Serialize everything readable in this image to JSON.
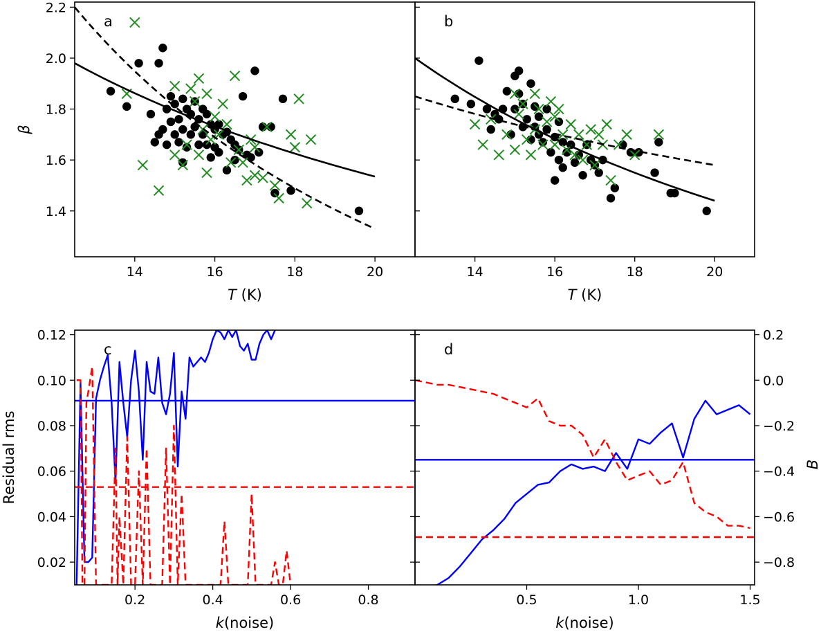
{
  "chart_data": [
    {
      "panel": "a",
      "type": "scatter",
      "xlabel_italic": "T",
      "xlabel_unit": " (K)",
      "ylabel": "β",
      "xlim": [
        12.5,
        21.0
      ],
      "ylim": [
        1.22,
        2.22
      ],
      "xticks": [
        "14",
        "16",
        "18",
        "20"
      ],
      "yticks": [
        "1.4",
        "1.6",
        "1.8",
        "2.0",
        "2.2"
      ],
      "colors": {
        "dots": "#000000",
        "crosses": "#228B22",
        "fit": "#000000"
      },
      "series": [
        {
          "name": "black-dots",
          "marker": "dot",
          "x": [
            13.4,
            13.8,
            14.1,
            14.4,
            14.5,
            14.6,
            14.6,
            14.7,
            14.7,
            14.8,
            14.8,
            14.9,
            14.9,
            15.0,
            15.0,
            15.1,
            15.1,
            15.2,
            15.2,
            15.2,
            15.3,
            15.3,
            15.4,
            15.4,
            15.5,
            15.5,
            15.6,
            15.6,
            15.7,
            15.7,
            15.8,
            15.8,
            15.9,
            15.9,
            16.0,
            16.0,
            16.1,
            16.1,
            16.2,
            16.3,
            16.3,
            16.4,
            16.5,
            16.5,
            16.6,
            16.7,
            16.8,
            16.9,
            17.0,
            17.1,
            17.2,
            17.4,
            17.5,
            17.7,
            17.9,
            19.6
          ],
          "y": [
            1.87,
            1.81,
            1.98,
            1.78,
            1.67,
            1.7,
            1.98,
            2.04,
            1.72,
            1.8,
            1.66,
            1.85,
            1.75,
            1.82,
            1.7,
            1.76,
            1.67,
            1.84,
            1.72,
            1.59,
            1.8,
            1.65,
            1.78,
            1.7,
            1.83,
            1.73,
            1.76,
            1.66,
            1.8,
            1.7,
            1.78,
            1.66,
            1.74,
            1.61,
            1.72,
            1.65,
            1.74,
            1.63,
            1.7,
            1.71,
            1.56,
            1.68,
            1.66,
            1.6,
            1.64,
            1.85,
            1.62,
            1.61,
            1.95,
            1.63,
            1.73,
            1.73,
            1.47,
            1.84,
            1.48,
            1.4
          ]
        },
        {
          "name": "green-crosses",
          "marker": "cross",
          "x": [
            13.8,
            14.0,
            14.2,
            14.6,
            15.0,
            15.0,
            15.2,
            15.3,
            15.4,
            15.5,
            15.6,
            15.6,
            15.7,
            15.8,
            15.8,
            15.9,
            16.0,
            16.1,
            16.2,
            16.3,
            16.4,
            16.5,
            16.6,
            16.7,
            16.8,
            16.9,
            17.0,
            17.0,
            17.2,
            17.3,
            17.5,
            17.6,
            17.9,
            18.0,
            18.1,
            18.3,
            18.4
          ],
          "y": [
            1.86,
            2.14,
            1.58,
            1.48,
            1.62,
            1.89,
            1.58,
            1.66,
            1.88,
            1.83,
            1.62,
            1.92,
            1.72,
            1.55,
            1.86,
            1.68,
            1.77,
            1.7,
            1.82,
            1.74,
            1.59,
            1.93,
            1.64,
            1.59,
            1.52,
            1.68,
            1.54,
            1.65,
            1.53,
            1.73,
            1.5,
            1.45,
            1.7,
            1.65,
            1.84,
            1.43,
            1.68
          ]
        },
        {
          "name": "solid-fit",
          "marker": "line-solid",
          "x": [
            12.5,
            20.0
          ],
          "y": [
            1.98,
            1.535
          ]
        },
        {
          "name": "dashed-fit",
          "marker": "line-dashed",
          "x": [
            12.5,
            20.0
          ],
          "y": [
            2.2,
            1.33
          ]
        }
      ]
    },
    {
      "panel": "b",
      "type": "scatter",
      "xlabel_italic": "T",
      "xlabel_unit": " (K)",
      "xlim": [
        12.5,
        21.0
      ],
      "ylim": [
        1.22,
        2.22
      ],
      "xticks": [
        "14",
        "16",
        "18",
        "20"
      ],
      "colors": {
        "dots": "#000000",
        "crosses": "#228B22",
        "fit": "#000000"
      },
      "series": [
        {
          "name": "black-dots",
          "marker": "dot",
          "x": [
            13.5,
            13.9,
            14.1,
            14.3,
            14.4,
            14.5,
            14.6,
            14.7,
            14.8,
            14.9,
            15.0,
            15.0,
            15.1,
            15.1,
            15.2,
            15.2,
            15.3,
            15.4,
            15.4,
            15.5,
            15.5,
            15.6,
            15.6,
            15.7,
            15.8,
            15.8,
            15.9,
            16.0,
            16.0,
            16.1,
            16.1,
            16.2,
            16.2,
            16.3,
            16.4,
            16.5,
            16.6,
            16.7,
            16.8,
            16.9,
            17.0,
            17.1,
            17.2,
            17.4,
            17.5,
            17.7,
            17.9,
            18.1,
            18.5,
            18.6,
            18.9,
            19.0,
            19.8
          ],
          "y": [
            1.84,
            1.82,
            1.99,
            1.8,
            1.72,
            1.78,
            1.76,
            1.8,
            1.87,
            1.7,
            1.93,
            1.8,
            1.95,
            1.86,
            1.82,
            1.73,
            1.76,
            1.9,
            1.68,
            1.81,
            1.73,
            1.7,
            1.77,
            1.67,
            1.8,
            1.72,
            1.63,
            1.69,
            1.52,
            1.75,
            1.6,
            1.67,
            1.57,
            1.63,
            1.66,
            1.59,
            1.62,
            1.54,
            1.66,
            1.6,
            1.58,
            1.55,
            1.6,
            1.45,
            1.49,
            1.66,
            1.63,
            1.63,
            1.55,
            1.67,
            1.47,
            1.47,
            1.4
          ]
        },
        {
          "name": "green-crosses",
          "marker": "cross",
          "x": [
            14.0,
            14.2,
            14.4,
            14.6,
            14.8,
            15.0,
            15.0,
            15.1,
            15.2,
            15.3,
            15.4,
            15.5,
            15.5,
            15.6,
            15.7,
            15.8,
            15.9,
            16.0,
            16.0,
            16.1,
            16.2,
            16.3,
            16.4,
            16.5,
            16.6,
            16.7,
            16.8,
            16.9,
            17.0,
            17.1,
            17.2,
            17.3,
            17.4,
            17.6,
            17.8,
            18.0,
            18.6
          ],
          "y": [
            1.74,
            1.66,
            1.76,
            1.62,
            1.7,
            1.86,
            1.64,
            1.78,
            1.82,
            1.68,
            1.62,
            1.86,
            1.72,
            1.8,
            1.66,
            1.75,
            1.83,
            1.77,
            1.66,
            1.8,
            1.7,
            1.64,
            1.74,
            1.62,
            1.7,
            1.6,
            1.66,
            1.72,
            1.58,
            1.7,
            1.66,
            1.74,
            1.52,
            1.66,
            1.7,
            1.62,
            1.7
          ]
        },
        {
          "name": "solid-fit",
          "marker": "line-solid",
          "x": [
            12.5,
            20.0
          ],
          "y": [
            2.0,
            1.44
          ]
        },
        {
          "name": "dashed-fit",
          "marker": "line-dashed",
          "x": [
            12.5,
            20.0
          ],
          "y": [
            1.85,
            1.58
          ]
        }
      ]
    },
    {
      "panel": "c",
      "type": "line",
      "xlabel_italic": "k",
      "xlabel_unit": "(noise)",
      "ylabel": "Residual rms",
      "xlim": [
        0.045,
        0.92
      ],
      "ylim": [
        0.01,
        0.122
      ],
      "y2lim": [
        -0.9,
        0.22
      ],
      "xticks": [
        "0.2",
        "0.4",
        "0.6",
        "0.8"
      ],
      "yticks": [
        "0.02",
        "0.04",
        "0.06",
        "0.08",
        "0.10",
        "0.12"
      ],
      "colors": {
        "rms": "#0000FF",
        "B": "#FF0000"
      },
      "series": [
        {
          "name": "rms",
          "axis": "left",
          "style": "solid",
          "x": [
            0.05,
            0.06,
            0.07,
            0.08,
            0.09,
            0.1,
            0.11,
            0.12,
            0.13,
            0.14,
            0.15,
            0.16,
            0.17,
            0.18,
            0.19,
            0.2,
            0.21,
            0.22,
            0.23,
            0.24,
            0.25,
            0.26,
            0.27,
            0.28,
            0.29,
            0.3,
            0.31,
            0.32,
            0.33,
            0.34,
            0.35,
            0.36,
            0.37,
            0.38,
            0.39,
            0.4,
            0.41,
            0.42,
            0.43,
            0.44,
            0.45,
            0.46,
            0.47,
            0.48,
            0.49,
            0.5,
            0.51,
            0.52,
            0.53,
            0.54,
            0.55,
            0.56
          ],
          "y": [
            0.01,
            0.099,
            0.02,
            0.02,
            0.022,
            0.092,
            0.1,
            0.106,
            0.111,
            0.09,
            0.055,
            0.108,
            0.09,
            0.075,
            0.1,
            0.113,
            0.095,
            0.065,
            0.108,
            0.095,
            0.094,
            0.11,
            0.09,
            0.085,
            0.094,
            0.112,
            0.062,
            0.095,
            0.083,
            0.11,
            0.106,
            0.108,
            0.11,
            0.108,
            0.112,
            0.118,
            0.122,
            0.121,
            0.118,
            0.122,
            0.119,
            0.122,
            0.115,
            0.113,
            0.116,
            0.109,
            0.109,
            0.116,
            0.12,
            0.122,
            0.118,
            0.122
          ]
        },
        {
          "name": "rms-ref",
          "axis": "left",
          "style": "solid",
          "x": [
            0.045,
            0.92
          ],
          "y": [
            0.091,
            0.091
          ]
        },
        {
          "name": "B",
          "axis": "right",
          "style": "dashed",
          "x": [
            0.05,
            0.06,
            0.065,
            0.07,
            0.075,
            0.08,
            0.09,
            0.1,
            0.105,
            0.11,
            0.12,
            0.13,
            0.14,
            0.15,
            0.155,
            0.16,
            0.17,
            0.18,
            0.19,
            0.2,
            0.21,
            0.22,
            0.23,
            0.24,
            0.25,
            0.26,
            0.27,
            0.28,
            0.29,
            0.3,
            0.31,
            0.32,
            0.33,
            0.34,
            0.35,
            0.42,
            0.43,
            0.44,
            0.48,
            0.49,
            0.5,
            0.51,
            0.55,
            0.56,
            0.57,
            0.58,
            0.59,
            0.6
          ],
          "y": [
            0.0,
            0.0,
            -0.9,
            -0.9,
            -0.1,
            -0.05,
            0.06,
            -0.9,
            -0.9,
            -0.9,
            -0.9,
            -0.9,
            -0.9,
            -0.3,
            -0.9,
            -0.6,
            -0.9,
            -0.25,
            -0.9,
            -0.9,
            -0.4,
            -0.9,
            -0.3,
            -0.9,
            -0.9,
            -0.9,
            -0.9,
            -0.3,
            -0.9,
            -0.2,
            -0.9,
            -0.5,
            -0.9,
            -0.9,
            -0.9,
            -0.9,
            -0.62,
            -0.9,
            -0.9,
            -0.9,
            -0.5,
            -0.9,
            -0.9,
            -0.8,
            -0.9,
            -0.9,
            -0.75,
            -0.9
          ]
        },
        {
          "name": "B-ref",
          "axis": "right",
          "style": "dashed",
          "x": [
            0.045,
            0.92
          ],
          "y": [
            -0.47,
            -0.47
          ]
        }
      ]
    },
    {
      "panel": "d",
      "type": "line",
      "xlabel_italic": "k",
      "xlabel_unit": "(noise)",
      "ylabel_right": "B",
      "xlim": [
        0.0,
        1.52
      ],
      "ylim": [
        0.01,
        0.122
      ],
      "y2lim": [
        -0.9,
        0.22
      ],
      "xticks": [
        "0.5",
        "1.0",
        "1.5"
      ],
      "y2ticks": [
        "0.2",
        "0.0",
        "-0.2",
        "-0.4",
        "-0.6",
        "-0.8"
      ],
      "colors": {
        "rms": "#0000FF",
        "B": "#FF0000"
      },
      "series": [
        {
          "name": "rms",
          "axis": "left",
          "style": "solid",
          "x": [
            0.05,
            0.1,
            0.15,
            0.2,
            0.25,
            0.3,
            0.35,
            0.4,
            0.45,
            0.5,
            0.55,
            0.6,
            0.65,
            0.7,
            0.75,
            0.8,
            0.85,
            0.9,
            0.95,
            1.0,
            1.05,
            1.1,
            1.15,
            1.2,
            1.25,
            1.3,
            1.35,
            1.4,
            1.45,
            1.5
          ],
          "y": [
            0.009,
            0.01,
            0.013,
            0.018,
            0.024,
            0.03,
            0.034,
            0.039,
            0.046,
            0.05,
            0.054,
            0.055,
            0.06,
            0.063,
            0.061,
            0.062,
            0.06,
            0.068,
            0.061,
            0.074,
            0.072,
            0.077,
            0.081,
            0.066,
            0.083,
            0.091,
            0.085,
            0.087,
            0.089,
            0.085
          ]
        },
        {
          "name": "rms-ref",
          "axis": "left",
          "style": "solid",
          "x": [
            0.0,
            1.52
          ],
          "y": [
            0.065,
            0.065
          ]
        },
        {
          "name": "B",
          "axis": "right",
          "style": "dashed",
          "x": [
            0.0,
            0.05,
            0.1,
            0.15,
            0.2,
            0.25,
            0.3,
            0.35,
            0.4,
            0.45,
            0.5,
            0.55,
            0.6,
            0.65,
            0.7,
            0.75,
            0.8,
            0.85,
            0.9,
            0.95,
            1.0,
            1.05,
            1.1,
            1.15,
            1.2,
            1.25,
            1.3,
            1.35,
            1.4,
            1.45,
            1.5
          ],
          "y": [
            0.0,
            -0.01,
            -0.02,
            -0.02,
            -0.03,
            -0.04,
            -0.05,
            -0.06,
            -0.08,
            -0.1,
            -0.12,
            -0.08,
            -0.18,
            -0.2,
            -0.2,
            -0.24,
            -0.34,
            -0.26,
            -0.36,
            -0.44,
            -0.42,
            -0.4,
            -0.46,
            -0.44,
            -0.36,
            -0.54,
            -0.58,
            -0.6,
            -0.64,
            -0.64,
            -0.65
          ]
        },
        {
          "name": "B-ref",
          "axis": "right",
          "style": "dashed",
          "x": [
            0.0,
            1.52
          ],
          "y": [
            -0.69,
            -0.69
          ]
        }
      ]
    }
  ]
}
